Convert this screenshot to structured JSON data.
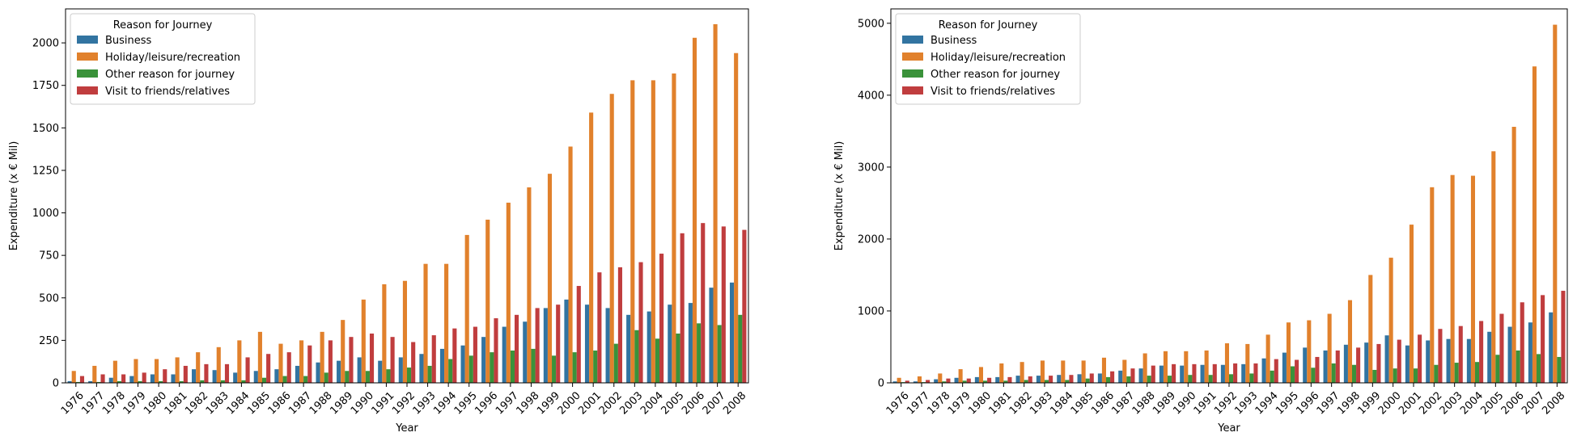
{
  "chart_data": [
    {
      "type": "bar",
      "xlabel": "Year",
      "ylabel": "Expenditure (x € Mil)",
      "ylim": [
        0,
        2200
      ],
      "yticks": [
        0,
        250,
        500,
        750,
        1000,
        1250,
        1500,
        1750,
        2000
      ],
      "legend_title": "Reason for Journey",
      "legend_position": "top-left",
      "grid": false,
      "categories": [
        "1976",
        "1977",
        "1978",
        "1979",
        "1980",
        "1981",
        "1982",
        "1983",
        "1984",
        "1985",
        "1986",
        "1987",
        "1988",
        "1989",
        "1990",
        "1991",
        "1992",
        "1993",
        "1994",
        "1995",
        "1996",
        "1997",
        "1998",
        "1999",
        "2000",
        "2001",
        "2002",
        "2003",
        "2004",
        "2005",
        "2006",
        "2007",
        "2008"
      ],
      "series": [
        {
          "name": "Business",
          "color": "#3274a1",
          "values": [
            10,
            10,
            30,
            40,
            50,
            50,
            80,
            75,
            60,
            70,
            80,
            100,
            120,
            130,
            150,
            130,
            150,
            170,
            200,
            220,
            270,
            330,
            360,
            440,
            490,
            460,
            440,
            400,
            420,
            460,
            470,
            560,
            590
          ]
        },
        {
          "name": "Holiday/leisure/recreation",
          "color": "#e1812c",
          "values": [
            70,
            100,
            130,
            140,
            140,
            150,
            180,
            210,
            250,
            300,
            230,
            250,
            300,
            370,
            490,
            580,
            600,
            700,
            700,
            870,
            960,
            1060,
            1150,
            1230,
            1390,
            1590,
            1700,
            1780,
            1780,
            1820,
            2030,
            2110,
            1940
          ]
        },
        {
          "name": "Other reason for journey",
          "color": "#3a923a",
          "values": [
            5,
            5,
            10,
            10,
            10,
            10,
            15,
            15,
            15,
            30,
            40,
            40,
            60,
            70,
            70,
            80,
            90,
            100,
            140,
            160,
            180,
            190,
            200,
            160,
            180,
            190,
            230,
            310,
            260,
            290,
            350,
            340,
            400
          ]
        },
        {
          "name": "Visit to friends/relatives",
          "color": "#c03d3e",
          "values": [
            40,
            50,
            50,
            60,
            80,
            100,
            110,
            110,
            150,
            170,
            180,
            220,
            250,
            270,
            290,
            270,
            240,
            280,
            320,
            330,
            380,
            400,
            440,
            460,
            570,
            650,
            680,
            710,
            760,
            880,
            940,
            920,
            900
          ]
        }
      ]
    },
    {
      "type": "bar",
      "xlabel": "Year",
      "ylabel": "Expenditure (x € Mil)",
      "ylim": [
        0,
        5200
      ],
      "yticks": [
        0,
        1000,
        2000,
        3000,
        4000,
        5000
      ],
      "legend_title": "Reason for Journey",
      "legend_position": "top-left",
      "grid": false,
      "categories": [
        "1976",
        "1977",
        "1978",
        "1979",
        "1980",
        "1981",
        "1982",
        "1983",
        "1984",
        "1985",
        "1986",
        "1987",
        "1988",
        "1989",
        "1990",
        "1991",
        "1992",
        "1993",
        "1994",
        "1995",
        "1996",
        "1997",
        "1998",
        "1999",
        "2000",
        "2001",
        "2002",
        "2003",
        "2004",
        "2005",
        "2006",
        "2007",
        "2008"
      ],
      "series": [
        {
          "name": "Business",
          "color": "#3274a1",
          "values": [
            20,
            20,
            50,
            70,
            80,
            80,
            100,
            100,
            110,
            120,
            130,
            170,
            200,
            240,
            240,
            250,
            250,
            260,
            340,
            420,
            490,
            450,
            530,
            560,
            660,
            520,
            590,
            610,
            610,
            710,
            780,
            840,
            980
          ]
        },
        {
          "name": "Holiday/leisure/recreation",
          "color": "#e1812c",
          "values": [
            70,
            90,
            130,
            190,
            220,
            270,
            290,
            310,
            310,
            310,
            350,
            320,
            410,
            440,
            440,
            450,
            550,
            540,
            670,
            840,
            870,
            960,
            1150,
            1500,
            1740,
            2200,
            2720,
            2890,
            2880,
            3220,
            3560,
            4400,
            4980
          ]
        },
        {
          "name": "Other reason for journey",
          "color": "#3a923a",
          "values": [
            10,
            10,
            20,
            30,
            30,
            30,
            40,
            40,
            40,
            60,
            80,
            90,
            100,
            100,
            110,
            110,
            120,
            130,
            170,
            230,
            210,
            270,
            250,
            180,
            200,
            200,
            250,
            280,
            290,
            390,
            450,
            400,
            360
          ]
        },
        {
          "name": "Visit to friends/relatives",
          "color": "#c03d3e",
          "values": [
            30,
            40,
            60,
            60,
            70,
            80,
            90,
            100,
            110,
            130,
            160,
            200,
            240,
            260,
            260,
            260,
            270,
            270,
            330,
            320,
            360,
            450,
            490,
            540,
            600,
            670,
            750,
            790,
            860,
            960,
            1120,
            1220,
            1280
          ]
        }
      ]
    }
  ]
}
